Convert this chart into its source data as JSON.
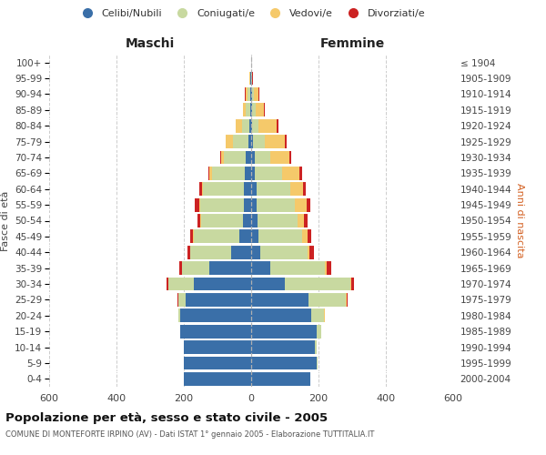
{
  "age_groups": [
    "0-4",
    "5-9",
    "10-14",
    "15-19",
    "20-24",
    "25-29",
    "30-34",
    "35-39",
    "40-44",
    "45-49",
    "50-54",
    "55-59",
    "60-64",
    "65-69",
    "70-74",
    "75-79",
    "80-84",
    "85-89",
    "90-94",
    "95-99",
    "100+"
  ],
  "birth_years": [
    "2000-2004",
    "1995-1999",
    "1990-1994",
    "1985-1989",
    "1980-1984",
    "1975-1979",
    "1970-1974",
    "1965-1969",
    "1960-1964",
    "1955-1959",
    "1950-1954",
    "1945-1949",
    "1940-1944",
    "1935-1939",
    "1930-1934",
    "1925-1929",
    "1920-1924",
    "1915-1919",
    "1910-1914",
    "1905-1909",
    "≤ 1904"
  ],
  "maschi": {
    "celibi": [
      200,
      200,
      200,
      210,
      210,
      195,
      170,
      125,
      60,
      35,
      25,
      22,
      22,
      20,
      15,
      8,
      5,
      4,
      3,
      2,
      1
    ],
    "coniugati": [
      1,
      1,
      1,
      2,
      5,
      20,
      75,
      80,
      120,
      135,
      125,
      130,
      120,
      95,
      65,
      45,
      22,
      12,
      8,
      2,
      0
    ],
    "vedovi": [
      0,
      0,
      0,
      0,
      1,
      1,
      1,
      1,
      1,
      2,
      2,
      3,
      5,
      8,
      8,
      22,
      18,
      8,
      6,
      1,
      0
    ],
    "divorziati": [
      0,
      0,
      0,
      0,
      1,
      2,
      5,
      7,
      8,
      10,
      7,
      12,
      8,
      4,
      3,
      2,
      2,
      1,
      1,
      1,
      0
    ]
  },
  "femmine": {
    "nubili": [
      175,
      195,
      190,
      195,
      178,
      170,
      100,
      58,
      28,
      22,
      18,
      15,
      15,
      12,
      10,
      6,
      4,
      3,
      2,
      1,
      1
    ],
    "coniugate": [
      1,
      2,
      4,
      12,
      38,
      110,
      195,
      160,
      140,
      130,
      120,
      115,
      100,
      80,
      48,
      35,
      18,
      10,
      5,
      1,
      0
    ],
    "vedove": [
      0,
      0,
      0,
      1,
      2,
      3,
      3,
      5,
      5,
      15,
      20,
      35,
      38,
      50,
      55,
      60,
      55,
      25,
      15,
      2,
      0
    ],
    "divorziate": [
      0,
      0,
      0,
      0,
      1,
      3,
      8,
      15,
      13,
      12,
      10,
      12,
      10,
      8,
      5,
      5,
      3,
      3,
      1,
      1,
      0
    ]
  },
  "colors": {
    "celibi": "#3a6fa8",
    "coniugati": "#c8d9a0",
    "vedovi": "#f5c96a",
    "divorziati": "#cc2222"
  },
  "xlim": 600,
  "title": "Popolazione per età, sesso e stato civile - 2005",
  "subtitle": "COMUNE DI MONTEFORTE IRPINO (AV) - Dati ISTAT 1° gennaio 2005 - Elaborazione TUTTITALIA.IT",
  "ylabel_left": "Fasce di età",
  "ylabel_right": "Anni di nascita",
  "xlabel_maschi": "Maschi",
  "xlabel_femmine": "Femmine",
  "bg_color": "#ffffff",
  "grid_color": "#cccccc",
  "legend": [
    "Celibi/Nubili",
    "Coniugati/e",
    "Vedovi/e",
    "Divorziati/e"
  ]
}
